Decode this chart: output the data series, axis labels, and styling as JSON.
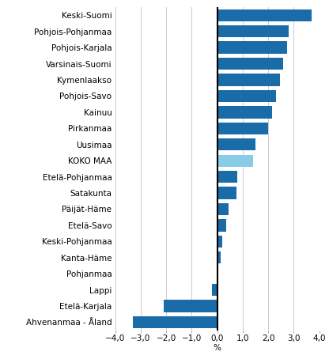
{
  "categories": [
    "Keski-Suomi",
    "Pohjois-Pohjanmaa",
    "Pohjois-Karjala",
    "Varsinais-Suomi",
    "Kymenlaakso",
    "Pohjois-Savo",
    "Kainuu",
    "Pirkanmaa",
    "Uusimaa",
    "KOKO MAA",
    "Etelä-Pohjanmaa",
    "Satakunta",
    "Päijät-Häme",
    "Etelä-Savo",
    "Keski-Pohjanmaa",
    "Kanta-Häme",
    "Pohjanmaa",
    "Lappi",
    "Etelä-Karjala",
    "Ahvenanmaa - Åland"
  ],
  "values": [
    3.7,
    2.8,
    2.75,
    2.6,
    2.45,
    2.3,
    2.15,
    2.0,
    1.5,
    1.4,
    0.8,
    0.75,
    0.45,
    0.35,
    0.2,
    0.15,
    0.02,
    -0.2,
    -2.1,
    -3.3
  ],
  "bar_colors": [
    "#1a6ca8",
    "#1a6ca8",
    "#1a6ca8",
    "#1a6ca8",
    "#1a6ca8",
    "#1a6ca8",
    "#1a6ca8",
    "#1a6ca8",
    "#1a6ca8",
    "#89cce8",
    "#1a6ca8",
    "#1a6ca8",
    "#1a6ca8",
    "#1a6ca8",
    "#1a6ca8",
    "#1a6ca8",
    "#1a6ca8",
    "#1a6ca8",
    "#1a6ca8",
    "#1a6ca8"
  ],
  "xlim": [
    -4.0,
    4.0
  ],
  "xticks": [
    -4.0,
    -3.0,
    -2.0,
    -1.0,
    0.0,
    1.0,
    2.0,
    3.0,
    4.0
  ],
  "xticklabels": [
    "−4,0",
    "−3,0",
    "−2,0",
    "−1,0",
    "0,0",
    "1,0",
    "2,0",
    "3,0",
    "4,0"
  ],
  "xlabel": "%",
  "background_color": "#ffffff",
  "grid_color": "#cccccc",
  "bar_height": 0.75,
  "label_fontsize": 7.5,
  "tick_fontsize": 7.5
}
